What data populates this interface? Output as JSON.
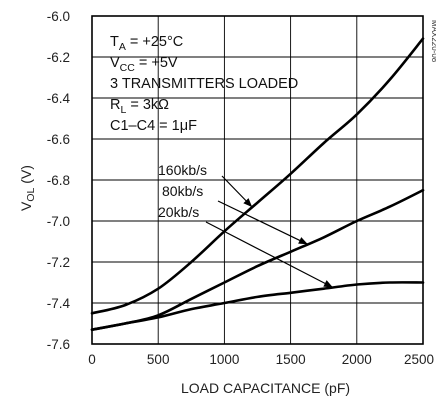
{
  "chart_data": {
    "type": "line",
    "xlabel": "LOAD CAPACITANCE (pF)",
    "ylabel_main": "V",
    "ylabel_sub": "OL",
    "ylabel_unit": " (V)",
    "xlim": [
      0,
      2500
    ],
    "ylim": [
      -7.6,
      -6.0
    ],
    "x_ticks": [
      0,
      500,
      1000,
      1500,
      2000,
      2500
    ],
    "x_tick_labels": [
      "0",
      "500",
      "1000",
      "1500",
      "2000",
      "2500"
    ],
    "y_ticks": [
      -6.0,
      -6.2,
      -6.4,
      -6.6,
      -6.8,
      -7.0,
      -7.2,
      -7.4,
      -7.6
    ],
    "y_tick_labels": [
      "-6.0",
      "-6.2",
      "-6.4",
      "-6.6",
      "-6.8",
      "-7.0",
      "-7.2",
      "-7.4",
      "-7.6"
    ],
    "grid": true,
    "figure_id": "MAX220-08",
    "conditions": [
      {
        "main": "T",
        "sub": "A",
        "rest": " = +25°C"
      },
      {
        "main": "V",
        "sub": "CC",
        "rest": " = +5V"
      },
      {
        "main": "3 TRANSMITTERS LOADED",
        "sub": "",
        "rest": ""
      },
      {
        "main": "R",
        "sub": "L",
        "rest": " = 3kΩ"
      },
      {
        "main": "C1–C4 = 1μF",
        "sub": "",
        "rest": ""
      }
    ],
    "series": [
      {
        "name": "160kb/s",
        "x": [
          0,
          250,
          500,
          750,
          1000,
          1250,
          1500,
          1750,
          2000,
          2250,
          2500
        ],
        "y": [
          -7.45,
          -7.41,
          -7.33,
          -7.2,
          -7.05,
          -6.91,
          -6.77,
          -6.62,
          -6.48,
          -6.31,
          -6.11
        ]
      },
      {
        "name": "80kb/s",
        "x": [
          0,
          250,
          500,
          750,
          1000,
          1250,
          1500,
          1750,
          2000,
          2250,
          2500
        ],
        "y": [
          -7.53,
          -7.5,
          -7.46,
          -7.38,
          -7.3,
          -7.22,
          -7.15,
          -7.08,
          -7.0,
          -6.93,
          -6.85
        ]
      },
      {
        "name": "20kb/s",
        "x": [
          0,
          250,
          500,
          750,
          1000,
          1250,
          1500,
          1750,
          2000,
          2250,
          2500
        ],
        "y": [
          -7.53,
          -7.5,
          -7.47,
          -7.43,
          -7.4,
          -7.37,
          -7.35,
          -7.33,
          -7.31,
          -7.3,
          -7.3
        ]
      }
    ],
    "legend": [
      "160kb/s",
      "80kb/s",
      "20kb/s"
    ]
  }
}
